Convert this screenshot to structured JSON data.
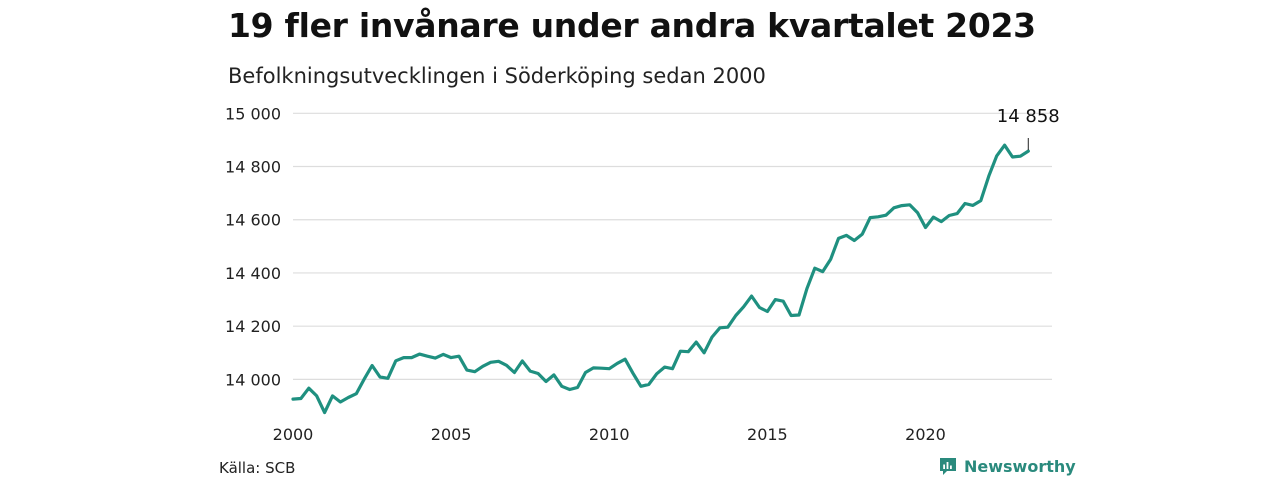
{
  "title": "19 fler invånare under andra kvartalet 2023",
  "subtitle": "Befolkningsutvecklingen i Söderköping sedan 2000",
  "source": "Källa: SCB",
  "brand": "Newsworthy",
  "colors": {
    "line": "#1f9080",
    "grid": "#dddddd",
    "brand": "#2a8a7d"
  },
  "chart_data": {
    "type": "line",
    "title": "19 fler invånare under andra kvartalet 2023",
    "subtitle": "Befolkningsutvecklingen i Söderköping sedan 2000",
    "xlabel": "",
    "ylabel": "",
    "xlim": [
      2000,
      2024
    ],
    "ylim": [
      13930,
      15020
    ],
    "grid": true,
    "x_ticks": [
      2000,
      2005,
      2010,
      2015,
      2020
    ],
    "x_tick_labels": [
      "2000",
      "2005",
      "2010",
      "2015",
      "2020"
    ],
    "y_ticks": [
      14000,
      14200,
      14400,
      14600,
      14800,
      15000
    ],
    "y_tick_labels": [
      "14 000",
      "14 200",
      "14 400",
      "14 600",
      "14 800",
      "15 000"
    ],
    "annotation": {
      "x": 2023.25,
      "y": 14858,
      "label": "14 858"
    },
    "series": [
      {
        "x": [
          2000,
          2000.25,
          2000.5,
          2000.75,
          2001,
          2001.25,
          2001.5,
          2001.75,
          2002,
          2002.25,
          2002.5,
          2002.75,
          2003,
          2003.25,
          2003.5,
          2003.75,
          2004,
          2004.25,
          2004.5,
          2004.75,
          2005,
          2005.25,
          2005.5,
          2005.75,
          2006,
          2006.25,
          2006.5,
          2006.75,
          2007,
          2007.25,
          2007.5,
          2007.75,
          2008,
          2008.25,
          2008.5,
          2008.75,
          2009,
          2009.25,
          2009.5,
          2009.75,
          2010,
          2010.25,
          2010.5,
          2010.75,
          2011,
          2011.25,
          2011.5,
          2011.75,
          2012,
          2012.25,
          2012.5,
          2012.75,
          2013,
          2013.25,
          2013.5,
          2013.75,
          2014,
          2014.25,
          2014.5,
          2014.75,
          2015,
          2015.25,
          2015.5,
          2015.75,
          2016,
          2016.25,
          2016.5,
          2016.75,
          2017,
          2017.25,
          2017.5,
          2017.75,
          2018,
          2018.25,
          2018.5,
          2018.75,
          2019,
          2019.25,
          2019.5,
          2019.75,
          2020,
          2020.25,
          2020.5,
          2020.75,
          2021,
          2021.25,
          2021.5,
          2021.75,
          2022,
          2022.25,
          2022.5,
          2022.75,
          2023,
          2023.25
        ],
        "values": [
          13926,
          13928,
          13967,
          13938,
          13875,
          13938,
          13915,
          13932,
          13946,
          14001,
          14052,
          14009,
          14004,
          14070,
          14082,
          14082,
          14095,
          14087,
          14080,
          14094,
          14082,
          14087,
          14035,
          14029,
          14049,
          14064,
          14068,
          14053,
          14026,
          14069,
          14031,
          14022,
          13992,
          14017,
          13974,
          13962,
          13970,
          14026,
          14043,
          14042,
          14040,
          14060,
          14076,
          14023,
          13974,
          13981,
          14021,
          14046,
          14040,
          14106,
          14104,
          14140,
          14100,
          14159,
          14194,
          14196,
          14240,
          14273,
          14313,
          14270,
          14255,
          14300,
          14294,
          14240,
          14242,
          14341,
          14418,
          14405,
          14451,
          14530,
          14541,
          14522,
          14546,
          14608,
          14611,
          14617,
          14645,
          14653,
          14656,
          14626,
          14571,
          14610,
          14593,
          14616,
          14623,
          14661,
          14654,
          14672,
          14764,
          14840,
          14880,
          14836,
          14839,
          14858
        ]
      }
    ]
  }
}
